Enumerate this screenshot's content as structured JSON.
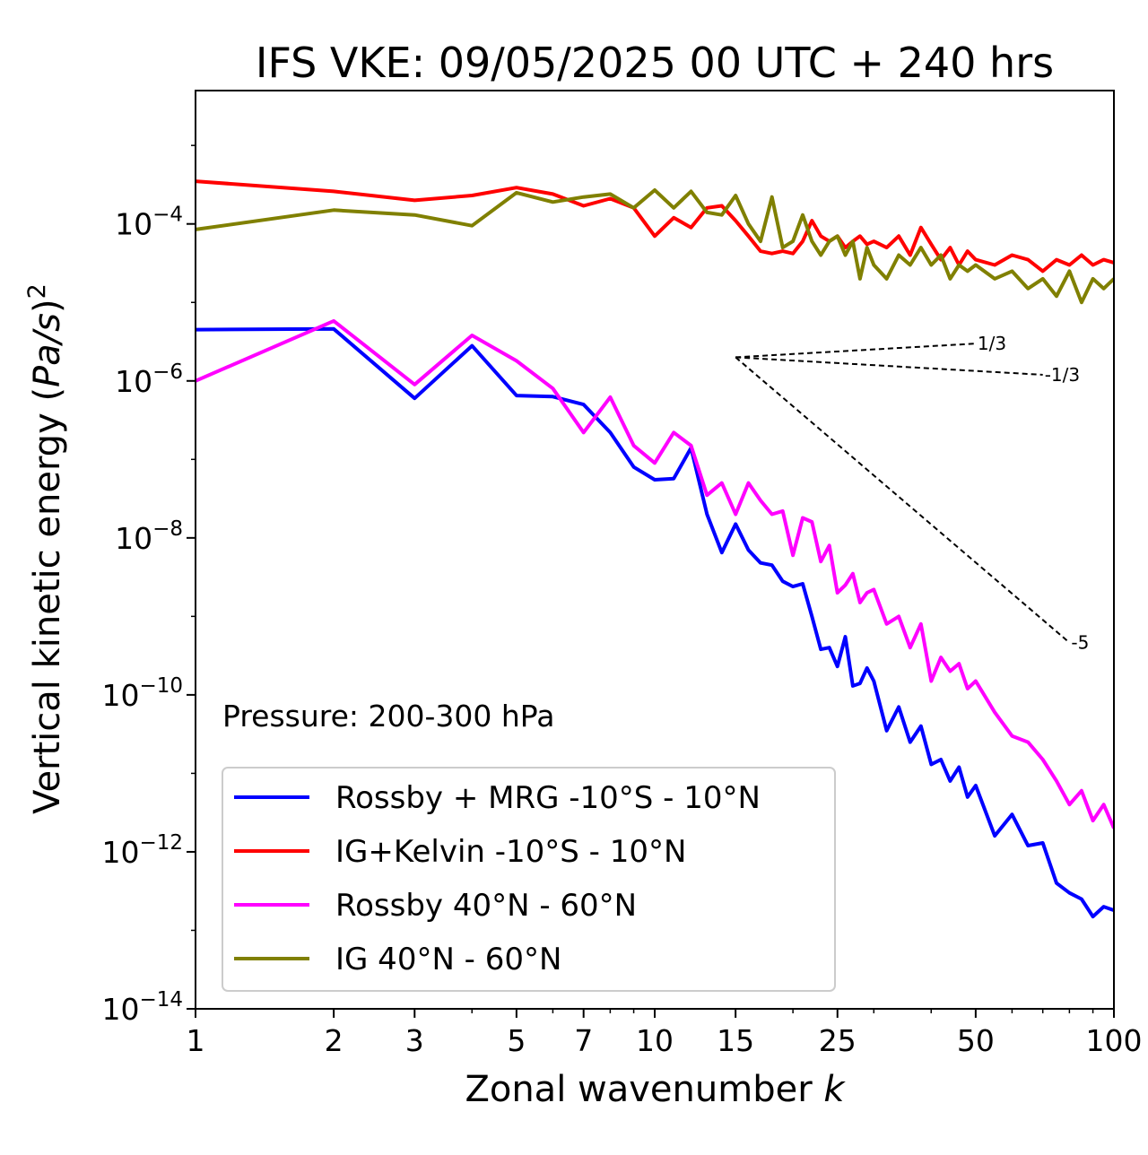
{
  "chart_data": {
    "type": "line",
    "title": "IFS VKE: 09/05/2025 00 UTC + 240 hrs",
    "xlabel": "Zonal wavenumber k",
    "ylabel": "Vertical kinetic energy (Pa/s)^2",
    "xscale": "log",
    "yscale": "log",
    "xlim": [
      1,
      100
    ],
    "ylim": [
      1e-14,
      0.005
    ],
    "x_ticks": [
      1,
      2,
      3,
      5,
      7,
      10,
      15,
      25,
      50,
      100
    ],
    "y_ticks": [
      {
        "base": "10",
        "exp": "−14",
        "value": 1e-14
      },
      {
        "base": "10",
        "exp": "−12",
        "value": 1e-12
      },
      {
        "base": "10",
        "exp": "−10",
        "value": 1e-10
      },
      {
        "base": "10",
        "exp": "−8",
        "value": 1e-08
      },
      {
        "base": "10",
        "exp": "−6",
        "value": 1e-06
      },
      {
        "base": "10",
        "exp": "−4",
        "value": 0.0001
      }
    ],
    "annotation": "Pressure: 200-300 hPa",
    "legend_position": "lower-left",
    "grid": false,
    "series": [
      {
        "name": "Rossby + MRG -10°S - 10°N",
        "color": "#0000ff",
        "x": [
          1,
          2,
          3,
          4,
          5,
          6,
          7,
          8,
          9,
          10,
          11,
          12,
          13,
          14,
          15,
          16,
          17,
          18,
          19,
          20,
          21,
          22,
          23,
          24,
          25,
          26,
          27,
          28,
          29,
          30,
          32,
          34,
          36,
          38,
          40,
          42,
          44,
          46,
          48,
          50,
          55,
          60,
          65,
          70,
          75,
          80,
          85,
          90,
          95,
          100
        ],
        "y": [
          4.5e-06,
          4.6e-06,
          6e-07,
          2.8e-06,
          6.5e-07,
          6.3e-07,
          5e-07,
          2.2e-07,
          8e-08,
          5.5e-08,
          5.7e-08,
          1.4e-07,
          2e-08,
          6.5e-09,
          1.5e-08,
          7e-09,
          4.8e-09,
          4.5e-09,
          2.8e-09,
          2.4e-09,
          2.6e-09,
          1e-09,
          3.8e-10,
          4e-10,
          2.3e-10,
          5.5e-10,
          1.3e-10,
          1.4e-10,
          2.2e-10,
          1.5e-10,
          3.5e-11,
          7e-11,
          2.5e-11,
          4e-11,
          1.3e-11,
          1.5e-11,
          8e-12,
          1.2e-11,
          5e-12,
          7e-12,
          1.6e-12,
          3e-12,
          1.2e-12,
          1.3e-12,
          4e-13,
          3e-13,
          2.5e-13,
          1.5e-13,
          2e-13,
          1.8e-13
        ]
      },
      {
        "name": "IG+Kelvin -10°S - 10°N",
        "color": "#ff0000",
        "x": [
          1,
          2,
          3,
          4,
          5,
          6,
          7,
          8,
          9,
          10,
          11,
          12,
          13,
          14,
          15,
          16,
          17,
          18,
          19,
          20,
          21,
          22,
          23,
          24,
          25,
          26,
          27,
          28,
          29,
          30,
          32,
          34,
          36,
          38,
          40,
          42,
          44,
          46,
          48,
          50,
          55,
          60,
          65,
          70,
          75,
          80,
          85,
          90,
          95,
          100
        ],
        "y": [
          0.00035,
          0.00026,
          0.0002,
          0.00023,
          0.00029,
          0.00024,
          0.00017,
          0.00021,
          0.00016,
          7e-05,
          0.00012,
          9e-05,
          0.00016,
          0.00017,
          0.00011,
          7e-05,
          4.5e-05,
          4.2e-05,
          4.5e-05,
          4.2e-05,
          6e-05,
          0.00011,
          7e-05,
          6e-05,
          7e-05,
          5e-05,
          6e-05,
          7e-05,
          5.5e-05,
          6e-05,
          5e-05,
          7e-05,
          4e-05,
          9e-05,
          5.5e-05,
          3.5e-05,
          5e-05,
          3e-05,
          4.5e-05,
          3.5e-05,
          3e-05,
          4e-05,
          3.5e-05,
          2.5e-05,
          3.5e-05,
          3e-05,
          4e-05,
          3e-05,
          3.5e-05,
          3.2e-05
        ]
      },
      {
        "name": "Rossby 40°N - 60°N",
        "color": "#ff00ff",
        "x": [
          1,
          2,
          3,
          4,
          5,
          6,
          7,
          8,
          9,
          10,
          11,
          12,
          13,
          14,
          15,
          16,
          17,
          18,
          19,
          20,
          21,
          22,
          23,
          24,
          25,
          26,
          27,
          28,
          29,
          30,
          32,
          34,
          36,
          38,
          40,
          42,
          44,
          46,
          48,
          50,
          55,
          60,
          65,
          70,
          75,
          80,
          85,
          90,
          95,
          100
        ],
        "y": [
          1e-06,
          5.8e-06,
          9e-07,
          3.8e-06,
          1.8e-06,
          8e-07,
          2.2e-07,
          6.2e-07,
          1.5e-07,
          9e-08,
          2.2e-07,
          1.5e-07,
          3.5e-08,
          5e-08,
          2e-08,
          5e-08,
          3e-08,
          2e-08,
          2.2e-08,
          6e-09,
          1.8e-08,
          1.6e-08,
          5e-09,
          8e-09,
          2e-09,
          2.5e-09,
          3.5e-09,
          1.5e-09,
          2e-09,
          2.2e-09,
          8e-10,
          1e-09,
          4e-10,
          8e-10,
          1.5e-10,
          3e-10,
          2e-10,
          2.5e-10,
          1.2e-10,
          1.5e-10,
          6e-11,
          3e-11,
          2.5e-11,
          1.5e-11,
          8e-12,
          4e-12,
          6e-12,
          2.5e-12,
          4e-12,
          2e-12
        ]
      },
      {
        "name": "IG 40°N - 60°N",
        "color": "#808000",
        "x": [
          1,
          2,
          3,
          4,
          5,
          6,
          7,
          8,
          9,
          10,
          11,
          12,
          13,
          14,
          15,
          16,
          17,
          18,
          19,
          20,
          21,
          22,
          23,
          24,
          25,
          26,
          27,
          28,
          29,
          30,
          32,
          34,
          36,
          38,
          40,
          42,
          44,
          46,
          48,
          50,
          55,
          60,
          65,
          70,
          75,
          80,
          85,
          90,
          95,
          100
        ],
        "y": [
          8.5e-05,
          0.00015,
          0.00013,
          9.5e-05,
          0.00025,
          0.00019,
          0.00022,
          0.00024,
          0.00016,
          0.00027,
          0.00016,
          0.00026,
          0.00014,
          0.00013,
          0.00023,
          0.0001,
          6e-05,
          0.00022,
          5e-05,
          6e-05,
          0.00013,
          6e-05,
          4e-05,
          6e-05,
          7e-05,
          4e-05,
          6e-05,
          2e-05,
          5e-05,
          3e-05,
          2e-05,
          4e-05,
          3e-05,
          5e-05,
          3e-05,
          4e-05,
          2e-05,
          3e-05,
          2.5e-05,
          3e-05,
          2e-05,
          2.5e-05,
          1.5e-05,
          2e-05,
          1.2e-05,
          2.5e-05,
          1e-05,
          2e-05,
          1.5e-05,
          2e-05
        ]
      }
    ],
    "reference_slopes": [
      {
        "label": "1/3",
        "slope": 0.333333,
        "x0": 15,
        "y0": 2e-06,
        "x1": 50
      },
      {
        "label": "-1/3",
        "slope": -0.333333,
        "x0": 15,
        "y0": 2e-06,
        "x1": 70
      },
      {
        "label": "-5",
        "slope": -5,
        "x0": 15,
        "y0": 2e-06,
        "x1": 80
      }
    ]
  }
}
